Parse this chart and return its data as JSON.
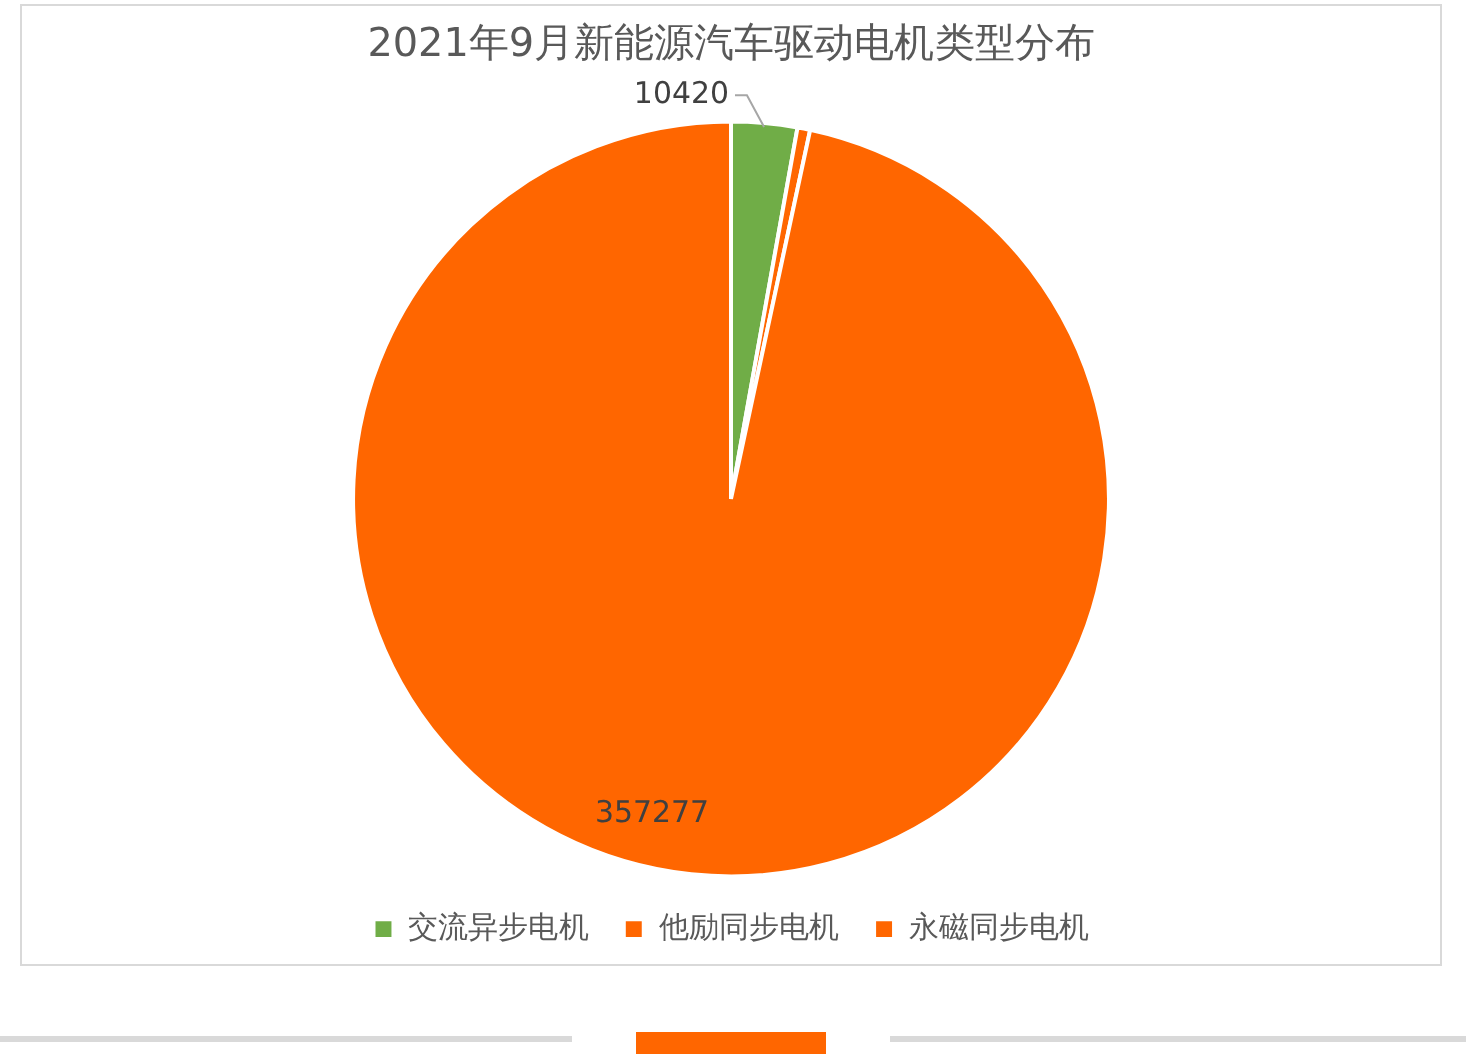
{
  "chart_data": {
    "type": "pie",
    "title": "2021年9月新能源汽车驱动电机类型分布",
    "categories": [
      "交流异步电机",
      "他励同步电机",
      "永磁同步电机"
    ],
    "values": [
      10420,
      2000,
      357277
    ],
    "colors": [
      "#70ad47",
      "#ff6600",
      "#ff6600"
    ],
    "value_labels": [
      "10420",
      null,
      "357277"
    ],
    "legend": "bottom"
  }
}
